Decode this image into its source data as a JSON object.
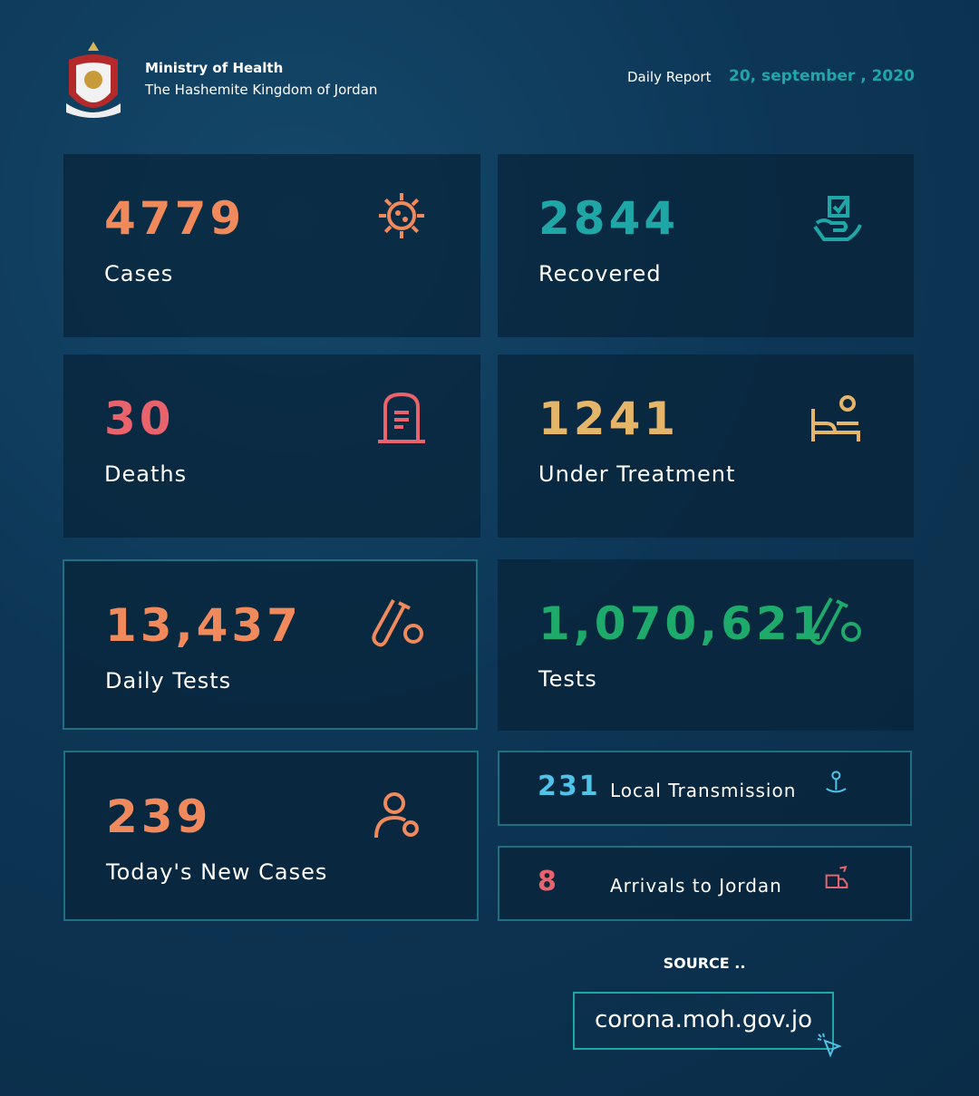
{
  "header": {
    "org": "Ministry of Health",
    "country": "The Hashemite Kingdom of Jordan",
    "report_label": "Daily Report",
    "date": "20, september , 2020"
  },
  "cards": [
    {
      "value": "4779",
      "label": "Cases"
    },
    {
      "value": "2844",
      "label": "Recovered"
    },
    {
      "value": "30",
      "label": "Deaths"
    },
    {
      "value": "1241",
      "label": "Under Treatment"
    },
    {
      "value": "13,437",
      "label": "Daily Tests"
    },
    {
      "value": "1,070,621",
      "label": "Tests"
    },
    {
      "value": "239",
      "label": "Today's New Cases"
    }
  ],
  "small_cards": [
    {
      "value": "231",
      "label": "Local Transmission"
    },
    {
      "value": "8",
      "label": "Arrivals to Jordan"
    }
  ],
  "source": {
    "label": "SOURCE ..",
    "url": "corona.moh.gov.jo"
  }
}
